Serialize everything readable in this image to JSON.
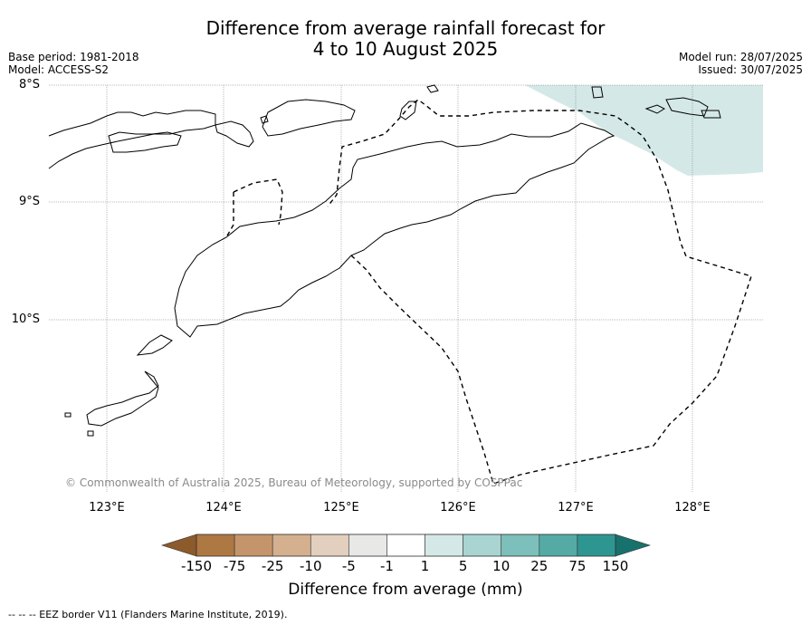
{
  "title_line1": "Difference from average rainfall forecast for",
  "title_line2": "4 to 10 August 2025",
  "meta_left": {
    "base_period": "Base period: 1981-2018",
    "model": "Model: ACCESS-S2"
  },
  "meta_right": {
    "model_run": "Model run: 28/07/2025",
    "issued": "Issued: 30/07/2025"
  },
  "map": {
    "lat_labels": [
      "8°S",
      "9°S",
      "10°S"
    ],
    "lon_labels": [
      "123°E",
      "124°E",
      "125°E",
      "126°E",
      "127°E",
      "128°E"
    ],
    "land_outline_color": "#000000",
    "eez_border_style": "dashed",
    "anomaly_region_color": "#d4e9e7"
  },
  "copyright": "© Commonwealth of Australia 2025, Bureau of Meteorology, supported by COSPPac",
  "colorbar": {
    "title": "Difference from average (mm)",
    "labels": [
      "-150",
      "-75",
      "-25",
      "-10",
      "-5",
      "-1",
      "1",
      "5",
      "10",
      "25",
      "75",
      "150"
    ],
    "colors": [
      "#8c5a2b",
      "#ae7843",
      "#c4956b",
      "#d5b08f",
      "#e3cfbd",
      "#e8e8e6",
      "#ffffff",
      "#d4e9e7",
      "#a9d4d1",
      "#7dbfba",
      "#55aaa5",
      "#2e9690",
      "#17716c"
    ]
  },
  "footnote": "--  --  -- EEZ border V11 (Flanders Marine Institute, 2019)."
}
